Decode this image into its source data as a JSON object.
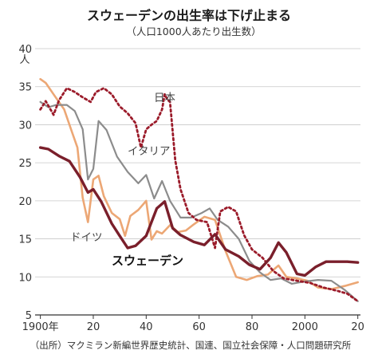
{
  "header": {
    "title": "スウェーデンの出生率は下げ止まる",
    "subtitle": "（人口1000人あたり出生数）"
  },
  "source": "（出所）マクミラン新編世界歴史統計、国連、国立社会保障・人口問題研究所",
  "colors": {
    "sweden": "#7a1f2b",
    "italy": "#8c8c8c",
    "germany": "#eca775",
    "japan": "#9b1b2a",
    "axis": "#333333",
    "grid": "#c8c8c8"
  },
  "chart_data": {
    "type": "line",
    "title": "スウェーデンの出生率は下げ止まる",
    "subtitle": "（人口1000人あたり出生数）",
    "ylabel": "人",
    "xlabel": "",
    "xlim": [
      1898,
      2021
    ],
    "ylim": [
      5,
      40
    ],
    "y_ticks": [
      5,
      10,
      15,
      20,
      25,
      30,
      35,
      40
    ],
    "y_tick_labels": [
      "5",
      "10",
      "15",
      "20",
      "25",
      "30",
      "35",
      "40"
    ],
    "x_ticks": [
      1900,
      1920,
      1940,
      1960,
      1980,
      2000,
      2020
    ],
    "x_tick_labels": [
      "1900年",
      "20",
      "40",
      "60",
      "80",
      "2000",
      "20"
    ],
    "grid": true,
    "series": [
      {
        "name": "スウェーデン",
        "style": "solid-bold",
        "x": [
          1900,
          1903,
          1907,
          1911,
          1915,
          1918,
          1920,
          1923,
          1927,
          1930,
          1933,
          1936,
          1940,
          1944,
          1947,
          1950,
          1953,
          1958,
          1962,
          1966,
          1970,
          1975,
          1979,
          1983,
          1987,
          1990,
          1993,
          1997,
          2000,
          2004,
          2008,
          2012,
          2016,
          2020
        ],
        "y": [
          27,
          26.8,
          25.9,
          25.2,
          23.1,
          21.1,
          21.5,
          19.9,
          17.0,
          15.4,
          13.8,
          14.1,
          15.4,
          19.0,
          19.9,
          16.4,
          15.5,
          14.6,
          14.2,
          15.6,
          13.6,
          12.7,
          11.6,
          11.0,
          12.5,
          14.5,
          13.2,
          10.4,
          10.2,
          11.3,
          12.0,
          12.0,
          12.0,
          11.9
        ]
      },
      {
        "name": "イタリア",
        "style": "solid",
        "x": [
          1900,
          1903,
          1906,
          1910,
          1913,
          1916,
          1918,
          1920,
          1922,
          1925,
          1929,
          1933,
          1937,
          1940,
          1943,
          1946,
          1949,
          1953,
          1957,
          1961,
          1964,
          1967,
          1971,
          1975,
          1979,
          1983,
          1987,
          1991,
          1995,
          2000,
          2005,
          2010,
          2015,
          2020
        ],
        "y": [
          33,
          32.3,
          32.6,
          32.6,
          31.8,
          29.4,
          22.8,
          24.2,
          30.5,
          29.3,
          25.8,
          23.8,
          22.3,
          23.4,
          20.3,
          22.6,
          20.0,
          17.8,
          17.8,
          18.4,
          19.0,
          17.5,
          16.6,
          15.0,
          12.1,
          10.6,
          9.6,
          9.8,
          9.1,
          9.4,
          9.6,
          9.5,
          8.3,
          6.8
        ]
      },
      {
        "name": "ドイツ",
        "style": "solid",
        "x": [
          1900,
          1902,
          1905,
          1909,
          1912,
          1914,
          1916,
          1918,
          1920,
          1922,
          1924,
          1927,
          1930,
          1932,
          1934,
          1937,
          1940,
          1942,
          1944,
          1946,
          1949,
          1952,
          1955,
          1958,
          1962,
          1966,
          1970,
          1974,
          1978,
          1982,
          1986,
          1990,
          1993,
          1997,
          2001,
          2005,
          2010,
          2015,
          2020
        ],
        "y": [
          36,
          35.5,
          34,
          32,
          29,
          27,
          20.4,
          17.2,
          22.8,
          23.3,
          20.6,
          18.4,
          17.6,
          15.4,
          18.0,
          18.8,
          20.0,
          14.9,
          16.0,
          15.7,
          16.8,
          15.9,
          16.1,
          16.9,
          17.9,
          17.5,
          13.4,
          10.0,
          9.6,
          10.1,
          10.3,
          11.5,
          10.0,
          9.8,
          9.5,
          8.6,
          8.4,
          8.8,
          9.3
        ]
      },
      {
        "name": "日本",
        "style": "dotted",
        "x": [
          1900,
          1902,
          1905,
          1907,
          1910,
          1913,
          1916,
          1919,
          1921,
          1924,
          1927,
          1930,
          1933,
          1936,
          1938,
          1940,
          1942,
          1944,
          1946,
          1947,
          1948,
          1949,
          1951,
          1953,
          1956,
          1959,
          1963,
          1966,
          1968,
          1971,
          1974,
          1977,
          1980,
          1984,
          1988,
          1992,
          1997,
          2002,
          2007,
          2012,
          2016,
          2020
        ],
        "y": [
          32,
          33.1,
          31.3,
          33.2,
          34.8,
          34.3,
          33.6,
          33.0,
          34.3,
          34.8,
          34.0,
          32.4,
          31.5,
          30.2,
          27.0,
          29.4,
          30.0,
          30.5,
          32.0,
          34.0,
          33.3,
          33.0,
          25.3,
          21.5,
          18.4,
          17.5,
          17.2,
          13.8,
          18.6,
          19.2,
          18.6,
          15.5,
          13.6,
          12.5,
          10.8,
          9.8,
          9.5,
          9.2,
          8.6,
          8.2,
          7.8,
          6.8
        ]
      }
    ],
    "annotations": [
      {
        "text": "日本",
        "series": "日本"
      },
      {
        "text": "イタリア",
        "series": "イタリア"
      },
      {
        "text": "ドイツ",
        "series": "ドイツ"
      },
      {
        "text": "スウェーデン",
        "series": "スウェーデン"
      }
    ]
  }
}
